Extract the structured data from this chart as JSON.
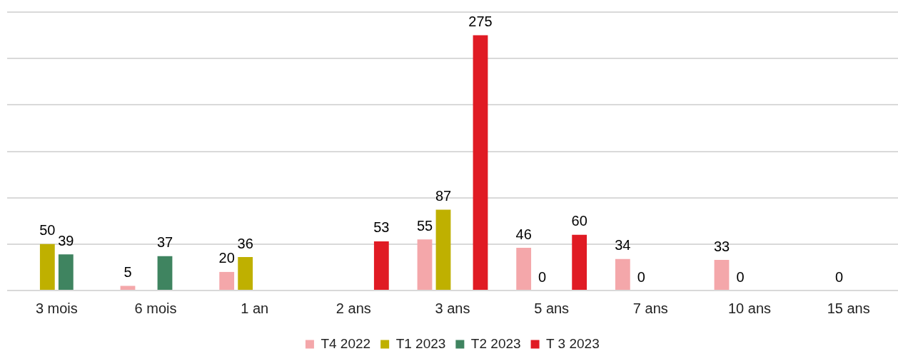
{
  "chart_data": {
    "type": "bar",
    "categories": [
      "3 mois",
      "6 mois",
      "1 an",
      "2 ans",
      "3 ans",
      "5 ans",
      "7 ans",
      "10 ans",
      "15 ans"
    ],
    "series": [
      {
        "name": "T4 2022",
        "color": "#f4a7aa",
        "values": [
          null,
          5,
          20,
          null,
          55,
          46,
          34,
          33,
          null
        ]
      },
      {
        "name": "T1 2023",
        "color": "#bfb000",
        "values": [
          50,
          null,
          36,
          null,
          87,
          0,
          0,
          0,
          0
        ]
      },
      {
        "name": "T2 2023",
        "color": "#3f8460",
        "values": [
          39,
          37,
          null,
          null,
          null,
          null,
          null,
          null,
          null
        ]
      },
      {
        "name": "T 3 2023",
        "color": "#e01b24",
        "values": [
          null,
          null,
          null,
          53,
          275,
          60,
          null,
          null,
          null
        ]
      }
    ],
    "ylim": [
      0,
      300
    ],
    "yticks": [
      {
        "value": 0,
        "label": null
      },
      {
        "value": 50,
        "label": null
      },
      {
        "value": 100,
        "label": null
      },
      {
        "value": 150,
        "label": null
      },
      {
        "value": 200,
        "label": null
      },
      {
        "value": 250,
        "label": null
      },
      {
        "value": 300,
        "label": null
      }
    ],
    "tick_labels": "x",
    "grid": "y",
    "legend": "bottom",
    "data_labels": true
  }
}
